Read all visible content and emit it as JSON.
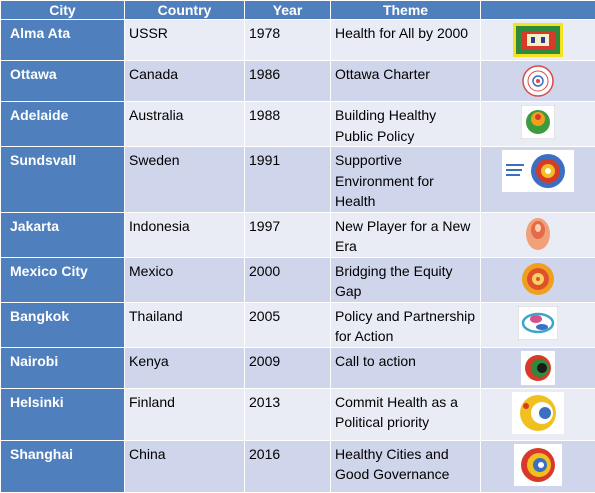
{
  "headers": {
    "city": "City",
    "country": "Country",
    "year": "Year",
    "theme": "Theme",
    "logo": ""
  },
  "rows": [
    {
      "city": "Alma Ata",
      "country": "USSR",
      "year": "1978",
      "theme": "Health for All by 2000",
      "logo_icon": "alma-ata-logo"
    },
    {
      "city": "Ottawa",
      "country": "Canada",
      "year": "1986",
      "theme": "Ottawa Charter",
      "logo_icon": "ottawa-charter-logo"
    },
    {
      "city": "Adelaide",
      "country": "Australia",
      "year": "1988",
      "theme": "Building Healthy Public Policy",
      "logo_icon": "adelaide-logo"
    },
    {
      "city": "Sundsvall",
      "country": "Sweden",
      "year": "1991",
      "theme": "Supportive Environment for Health",
      "logo_icon": "sundsvall-logo"
    },
    {
      "city": "Jakarta",
      "country": "Indonesia",
      "year": "1997",
      "theme": "New Player for a New Era",
      "logo_icon": "jakarta-logo"
    },
    {
      "city": "Mexico City",
      "country": "Mexico",
      "year": "2000",
      "theme": "Bridging the Equity Gap",
      "logo_icon": "mexico-city-logo"
    },
    {
      "city": "Bangkok",
      "country": "Thailand",
      "year": "2005",
      "theme": "Policy and Partnership for Action",
      "logo_icon": "bangkok-logo"
    },
    {
      "city": "Nairobi",
      "country": "Kenya",
      "year": "2009",
      "theme": "Call to action",
      "logo_icon": "nairobi-logo"
    },
    {
      "city": "Helsinki",
      "country": "Finland",
      "year": "2013",
      "theme": "Commit Health as a Political priority",
      "logo_icon": "helsinki-logo"
    },
    {
      "city": "Shanghai",
      "country": "China",
      "year": "2016",
      "theme": "Healthy Cities and Good Governance",
      "logo_icon": "shanghai-logo"
    }
  ],
  "colors": {
    "header": "#4f7fbd",
    "row_light": "#e9ebf5",
    "row_dark": "#cfd5ea"
  }
}
